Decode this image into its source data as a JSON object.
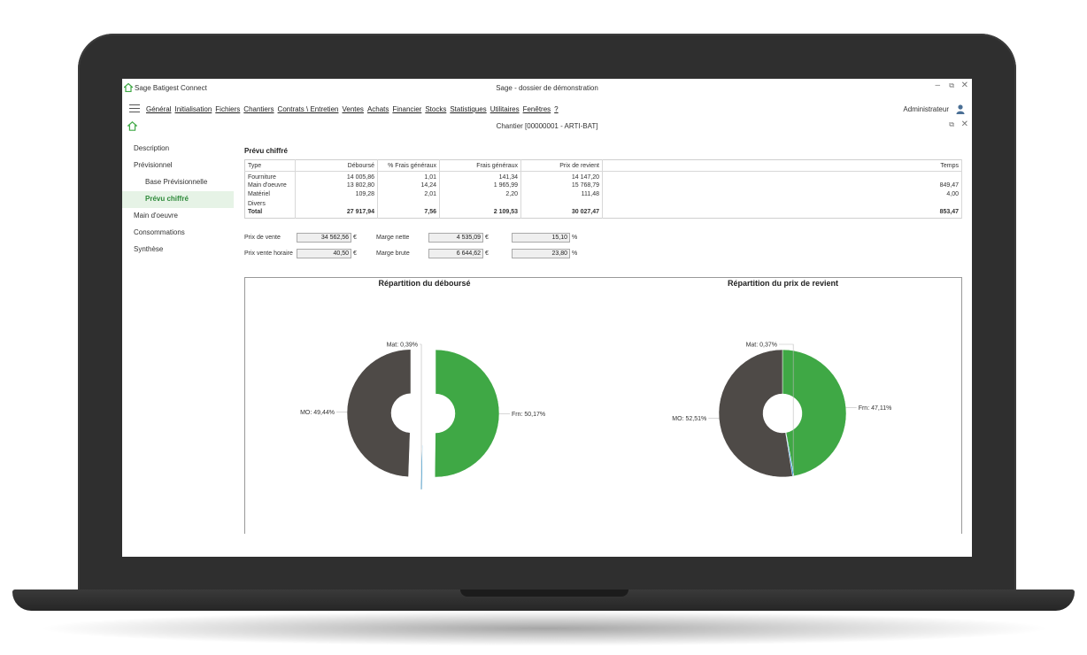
{
  "app": {
    "name": "Sage Batigest Connect",
    "window_title": "Sage - dossier de démonstration",
    "brand_color": "#3fa845"
  },
  "menu": {
    "items": [
      "Général",
      "Initialisation",
      "Fichiers",
      "Chantiers",
      "Contrats \\ Entretien",
      "Ventes",
      "Achats",
      "Financier",
      "Stocks",
      "Statistiques",
      "Utilitaires",
      "Fenêtres",
      "?"
    ],
    "user": "Administrateur"
  },
  "document": {
    "title": "Chantier [00000001  - ARTI-BAT]"
  },
  "sidebar": {
    "items": [
      {
        "label": "Description",
        "level": 0,
        "active": false
      },
      {
        "label": "Prévisionnel",
        "level": 0,
        "active": false
      },
      {
        "label": "Base Prévisionnelle",
        "level": 1,
        "active": false
      },
      {
        "label": "Prévu chiffré",
        "level": 1,
        "active": true
      },
      {
        "label": "Main d'oeuvre",
        "level": 0,
        "active": false
      },
      {
        "label": "Consommations",
        "level": 0,
        "active": false
      },
      {
        "label": "Synthèse",
        "level": 0,
        "active": false
      }
    ]
  },
  "section": {
    "title": "Prévu chiffré"
  },
  "table": {
    "headers": [
      "Type",
      "Déboursé",
      "% Frais généraux",
      "Frais généraux",
      "Prix de revient",
      "Temps"
    ],
    "rows": [
      [
        "Fourniture",
        "14 005,86",
        "1,01",
        "141,34",
        "14 147,20",
        ""
      ],
      [
        "Main d'oeuvre",
        "13 802,80",
        "14,24",
        "1 965,99",
        "15 768,79",
        "849,47"
      ],
      [
        "Matériel",
        "109,28",
        "2,01",
        "2,20",
        "111,48",
        "4,00"
      ],
      [
        "Divers",
        "",
        "",
        "",
        "",
        ""
      ]
    ],
    "total": [
      "Total",
      "27 917,94",
      "7,56",
      "2 109,53",
      "30 027,47",
      "853,47"
    ]
  },
  "kpis": {
    "prix_vente_label": "Prix de vente",
    "prix_vente_value": "34 562,56",
    "prix_vente_horaire_label": "Prix vente horaire",
    "prix_vente_horaire_value": "40,50",
    "marge_nette_label": "Marge nette",
    "marge_nette_value": "4 535,09",
    "marge_nette_pct": "15,10",
    "marge_brute_label": "Marge brute",
    "marge_brute_value": "6 644,62",
    "marge_brute_pct": "23,80",
    "currency": "€",
    "percent": "%"
  },
  "chart_data": [
    {
      "type": "pie",
      "title": "Répartition du déboursé",
      "slices": [
        {
          "label": "Frn: 50,17%",
          "value": 50.17,
          "color": "#3fa845",
          "exploded": true
        },
        {
          "label": "Mat: 0,39%",
          "value": 0.39,
          "color": "#1e9be0",
          "exploded": true
        },
        {
          "label": "MO: 49,44%",
          "value": 49.44,
          "color": "#4e4a47",
          "exploded": true
        }
      ]
    },
    {
      "type": "pie",
      "title": "Répartition du prix de revient",
      "slices": [
        {
          "label": "Frn: 47,11%",
          "value": 47.11,
          "color": "#3fa845",
          "exploded": false
        },
        {
          "label": "Mat: 0,37%",
          "value": 0.37,
          "color": "#1e9be0",
          "exploded": false
        },
        {
          "label": "MO: 52,51%",
          "value": 52.51,
          "color": "#4e4a47",
          "exploded": false
        }
      ]
    }
  ]
}
